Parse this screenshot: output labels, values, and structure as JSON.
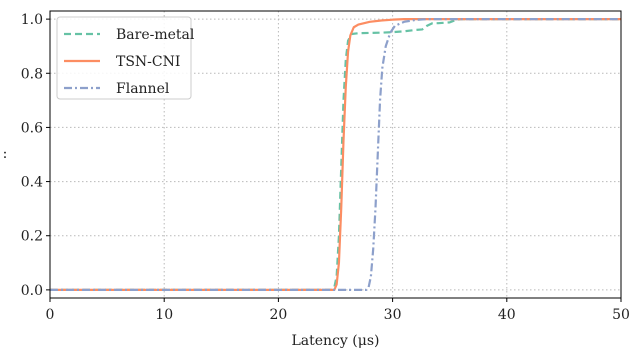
{
  "chart_data": {
    "type": "line",
    "title": "",
    "xlabel": "Latency (μs)",
    "ylabel": ":",
    "xlim": [
      0,
      50
    ],
    "ylim": [
      -0.03,
      1.03
    ],
    "grid": true,
    "legend_position": "top-left",
    "x_ticks": [
      "0",
      "10",
      "20",
      "30",
      "40",
      "50"
    ],
    "y_ticks": [
      "0.0",
      "0.2",
      "0.4",
      "0.6",
      "0.8",
      "1.0"
    ],
    "series": [
      {
        "name": "Bare-metal",
        "color": "#66c2a5",
        "style": "dashed",
        "points": [
          [
            0,
            0
          ],
          [
            24.6,
            0
          ],
          [
            24.9,
            0.01
          ],
          [
            25.1,
            0.05
          ],
          [
            25.3,
            0.2
          ],
          [
            25.5,
            0.45
          ],
          [
            25.7,
            0.7
          ],
          [
            25.9,
            0.85
          ],
          [
            26.1,
            0.92
          ],
          [
            26.4,
            0.945
          ],
          [
            27,
            0.948
          ],
          [
            29,
            0.95
          ],
          [
            30,
            0.952
          ],
          [
            31,
            0.955
          ],
          [
            32,
            0.96
          ],
          [
            32.6,
            0.962
          ],
          [
            33,
            0.975
          ],
          [
            33.5,
            0.985
          ],
          [
            34,
            0.985
          ],
          [
            35,
            0.988
          ],
          [
            35.6,
            0.998
          ],
          [
            36,
            1
          ],
          [
            50,
            1
          ]
        ]
      },
      {
        "name": "TSN-CNI",
        "color": "#fc8d62",
        "style": "solid",
        "points": [
          [
            0,
            0
          ],
          [
            24.9,
            0
          ],
          [
            25.1,
            0.02
          ],
          [
            25.3,
            0.1
          ],
          [
            25.5,
            0.3
          ],
          [
            25.7,
            0.55
          ],
          [
            25.9,
            0.75
          ],
          [
            26.1,
            0.88
          ],
          [
            26.3,
            0.94
          ],
          [
            26.6,
            0.97
          ],
          [
            27,
            0.98
          ],
          [
            28,
            0.99
          ],
          [
            29,
            0.995
          ],
          [
            30,
            0.998
          ],
          [
            31,
            1
          ],
          [
            50,
            1
          ]
        ]
      },
      {
        "name": "Flannel",
        "color": "#8da0cb",
        "style": "dashdot",
        "points": [
          [
            0,
            0
          ],
          [
            27.7,
            0
          ],
          [
            27.9,
            0.01
          ],
          [
            28.1,
            0.05
          ],
          [
            28.3,
            0.15
          ],
          [
            28.5,
            0.3
          ],
          [
            28.7,
            0.5
          ],
          [
            28.9,
            0.7
          ],
          [
            29.1,
            0.82
          ],
          [
            29.4,
            0.9
          ],
          [
            29.8,
            0.95
          ],
          [
            30.2,
            0.975
          ],
          [
            31,
            0.99
          ],
          [
            32,
            0.997
          ],
          [
            33,
            1
          ],
          [
            50,
            1
          ]
        ]
      }
    ]
  }
}
